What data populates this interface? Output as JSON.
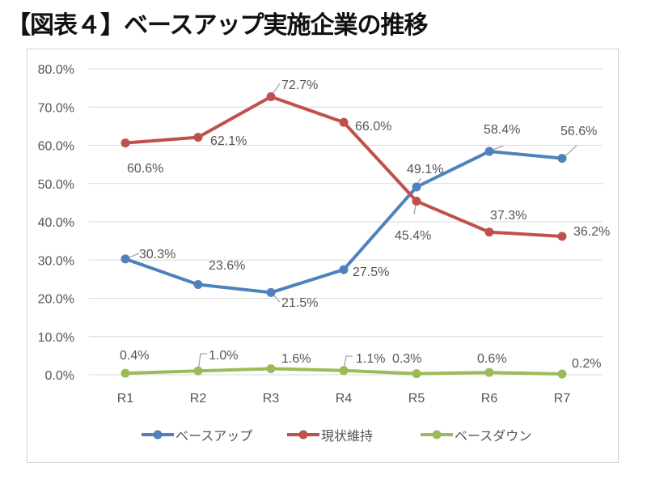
{
  "title": "【図表４】ベースアップ実施企業の推移",
  "chart_data": {
    "type": "line",
    "title": "【図表４】ベースアップ実施企業の推移",
    "categories": [
      "R1",
      "R2",
      "R3",
      "R4",
      "R5",
      "R6",
      "R7"
    ],
    "ylim": [
      0,
      80
    ],
    "yticks": [
      "0.0%",
      "10.0%",
      "20.0%",
      "30.0%",
      "40.0%",
      "50.0%",
      "60.0%",
      "70.0%",
      "80.0%"
    ],
    "grid": true,
    "legend_position": "bottom",
    "series": [
      {
        "name": "ベースアップ",
        "color": "#4F81BD",
        "values": [
          30.3,
          23.6,
          21.5,
          27.5,
          49.1,
          58.4,
          56.6
        ],
        "labels": [
          "30.3%",
          "23.6%",
          "21.5%",
          "27.5%",
          "49.1%",
          "58.4%",
          "56.6%"
        ]
      },
      {
        "name": "現状維持",
        "color": "#C0504D",
        "values": [
          60.6,
          62.1,
          72.7,
          66.0,
          45.4,
          37.3,
          36.2
        ],
        "labels": [
          "60.6%",
          "62.1%",
          "72.7%",
          "66.0%",
          "45.4%",
          "37.3%",
          "36.2%"
        ]
      },
      {
        "name": "ベースダウン",
        "color": "#9BBB59",
        "values": [
          0.4,
          1.0,
          1.6,
          1.1,
          0.3,
          0.6,
          0.2
        ],
        "labels": [
          "0.4%",
          "1.0%",
          "1.6%",
          "1.1%",
          "0.3%",
          "0.6%",
          "0.2%"
        ]
      }
    ]
  }
}
